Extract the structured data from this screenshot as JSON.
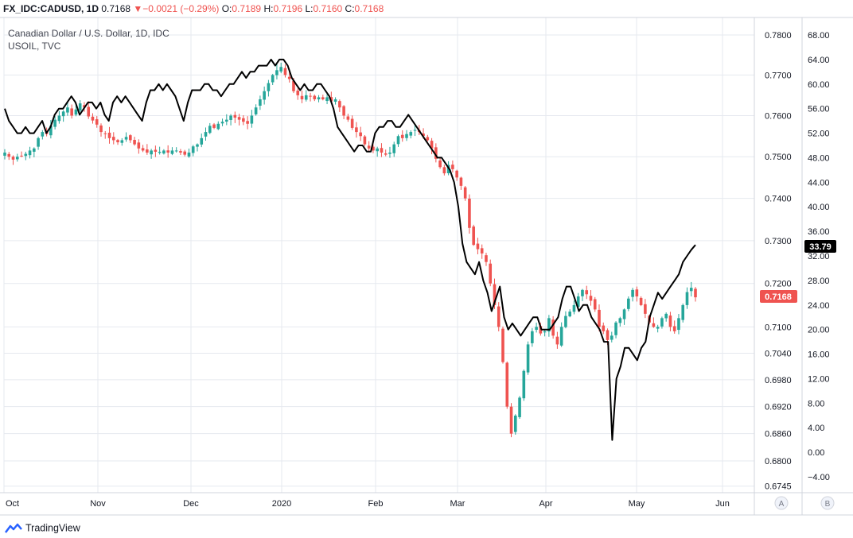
{
  "header": {
    "symbol": "FX_IDC:CADUSD, 1D",
    "last": "0.7168",
    "change": "−0.0021 (−0.29%)",
    "open_label": "O:",
    "open": "0.7189",
    "high_label": "H:",
    "high": "0.7196",
    "low_label": "L:",
    "low": "0.7160",
    "close_label": "C:",
    "close": "0.7168"
  },
  "legend": {
    "main": "Canadian Dollar / U.S. Dollar, 1D, IDC",
    "overlay": "USOIL, TVC"
  },
  "brand": "TradingView",
  "colors": {
    "up": "#26a69a",
    "down": "#ef5350",
    "overlay_line": "#000000",
    "grid": "#e6e9ef"
  },
  "chart_data": {
    "type": "candlestick",
    "x_ticks": [
      "Oct",
      "Nov",
      "Dec",
      "2020",
      "Feb",
      "Mar",
      "Apr",
      "May",
      "Jun"
    ],
    "y_left_ticks": [
      "0.7800",
      "0.7700",
      "0.7600",
      "0.7500",
      "0.7400",
      "0.7300",
      "0.7200",
      "0.7100",
      "0.7040",
      "0.6980",
      "0.6920",
      "0.6860",
      "0.6800",
      "0.6745"
    ],
    "y_right_ticks": [
      "68.00",
      "64.00",
      "60.00",
      "56.00",
      "52.00",
      "48.00",
      "44.00",
      "40.00",
      "36.00",
      "32.00",
      "28.00",
      "24.00",
      "20.00",
      "16.00",
      "12.00",
      "8.00",
      "4.00",
      "0.00",
      "−4.00"
    ],
    "right_scale": {
      "min": -4,
      "max": 68,
      "min_pos": 600,
      "max_pos": 44
    },
    "scale_buttons": [
      "A",
      "B"
    ],
    "cadusd_close_approx": [
      0.751,
      0.75,
      0.7493,
      0.75,
      0.7502,
      0.7507,
      0.7515,
      0.752,
      0.7545,
      0.756,
      0.7555,
      0.7575,
      0.759,
      0.76,
      0.761,
      0.762,
      0.76,
      0.7615,
      0.763,
      0.762,
      0.7598,
      0.7588,
      0.7578,
      0.756,
      0.7555,
      0.7545,
      0.754,
      0.7535,
      0.754,
      0.7548,
      0.754,
      0.753,
      0.752,
      0.7515,
      0.751,
      0.7515,
      0.7512,
      0.7512,
      0.7515,
      0.751,
      0.7515,
      0.7515,
      0.751,
      0.7505,
      0.751,
      0.7525,
      0.753,
      0.7545,
      0.756,
      0.7575,
      0.757,
      0.758,
      0.7585,
      0.759,
      0.76,
      0.7595,
      0.759,
      0.7585,
      0.758,
      0.76,
      0.762,
      0.764,
      0.766,
      0.768,
      0.77,
      0.7712,
      0.772,
      0.77,
      0.769,
      0.766,
      0.765,
      0.764,
      0.765,
      0.7648,
      0.764,
      0.7645,
      0.764,
      0.7645,
      0.7635,
      0.764,
      0.762,
      0.76,
      0.759,
      0.757,
      0.756,
      0.755,
      0.753,
      0.752,
      0.7515,
      0.752,
      0.751,
      0.7505,
      0.751,
      0.753,
      0.755,
      0.7545,
      0.7555,
      0.756,
      0.7565,
      0.756,
      0.755,
      0.754,
      0.752,
      0.7495,
      0.7475,
      0.746,
      0.748,
      0.747,
      0.745,
      0.743,
      0.74,
      0.733,
      0.729,
      0.728,
      0.727,
      0.725,
      0.72,
      0.715,
      0.71,
      0.702,
      0.692,
      0.686,
      0.69,
      0.694,
      0.7,
      0.706,
      0.709,
      0.71,
      0.7085,
      0.709,
      0.712,
      0.708,
      0.706,
      0.71,
      0.7125,
      0.7135,
      0.715,
      0.717,
      0.7185,
      0.7175,
      0.716,
      0.714,
      0.71,
      0.709,
      0.707,
      0.708,
      0.711,
      0.712,
      0.714,
      0.7165,
      0.7185,
      0.717,
      0.715,
      0.713,
      0.711,
      0.71,
      0.71,
      0.712,
      0.713,
      0.71,
      0.709,
      0.712,
      0.715,
      0.718,
      0.719,
      0.7168
    ],
    "usoil_approx": [
      56,
      54,
      53,
      52,
      52,
      53,
      52,
      52,
      53,
      54,
      52,
      53,
      55,
      56,
      56,
      57,
      58,
      57,
      55,
      56,
      57,
      57,
      56,
      57,
      55,
      54,
      57,
      58,
      57,
      58,
      57,
      56,
      55,
      54,
      57,
      59,
      59,
      60,
      59,
      60,
      59,
      58,
      56,
      54,
      57,
      59,
      59,
      59,
      60,
      60,
      59,
      59,
      58,
      59,
      60,
      60,
      61,
      62,
      61,
      62,
      62,
      63,
      63,
      63,
      64,
      63,
      64,
      64,
      63,
      61,
      60,
      59,
      60,
      59,
      59,
      60,
      60,
      59,
      58,
      56,
      53,
      52,
      51,
      50,
      49,
      50,
      50,
      49,
      49,
      52,
      53,
      53,
      54,
      54,
      53,
      53,
      54,
      55,
      54,
      53,
      52,
      51,
      50,
      49,
      48,
      48,
      47,
      46,
      44,
      40,
      34,
      31,
      30,
      29,
      31,
      28,
      26,
      23,
      25,
      27,
      22,
      20,
      21,
      20,
      19,
      20,
      21,
      22,
      22,
      20,
      20,
      20,
      21,
      22,
      25,
      27,
      27,
      25,
      23,
      24,
      24,
      22,
      21,
      20,
      18,
      18,
      2,
      12,
      14,
      17,
      17,
      16,
      15,
      17,
      18,
      22,
      24,
      26,
      25,
      26,
      27,
      28,
      29,
      31,
      32,
      33,
      33.79
    ]
  }
}
